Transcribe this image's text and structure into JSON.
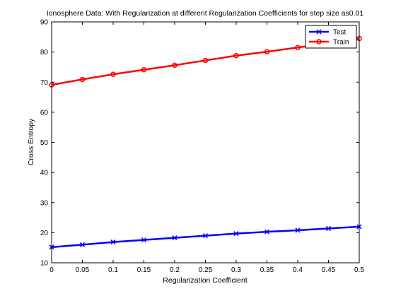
{
  "chart_data": {
    "type": "line",
    "title": "Ionosphere Data: With Regularization at different Regularization Coefficients for step size as0.01",
    "xlabel": "Regularization Coefficient",
    "ylabel": "Cross Entropy",
    "xlim": [
      0,
      0.5
    ],
    "ylim": [
      10,
      90
    ],
    "xticks": [
      0,
      0.05,
      0.1,
      0.15,
      0.2,
      0.25,
      0.3,
      0.35,
      0.4,
      0.45,
      0.5
    ],
    "xtick_labels": [
      "0",
      "0.05",
      "0.1",
      "0.15",
      "0.2",
      "0.25",
      "0.3",
      "0.35",
      "0.4",
      "0.45",
      "0.5"
    ],
    "yticks": [
      10,
      20,
      30,
      40,
      50,
      60,
      70,
      80,
      90
    ],
    "ytick_labels": [
      "10",
      "20",
      "30",
      "40",
      "50",
      "60",
      "70",
      "80",
      "90"
    ],
    "grid": false,
    "legend_position": "top-right",
    "x": [
      0,
      0.05,
      0.1,
      0.15,
      0.2,
      0.25,
      0.3,
      0.35,
      0.4,
      0.45,
      0.5
    ],
    "series": [
      {
        "name": "Test",
        "color": "#0000ff",
        "marker": "x",
        "values": [
          15.2,
          16.0,
          16.9,
          17.6,
          18.3,
          19.0,
          19.7,
          20.3,
          20.8,
          21.4,
          22.0
        ]
      },
      {
        "name": "Train",
        "color": "#ff0000",
        "marker": "o",
        "values": [
          69.1,
          70.9,
          72.6,
          74.1,
          75.6,
          77.2,
          78.8,
          80.1,
          81.5,
          82.9,
          84.5
        ]
      }
    ]
  }
}
